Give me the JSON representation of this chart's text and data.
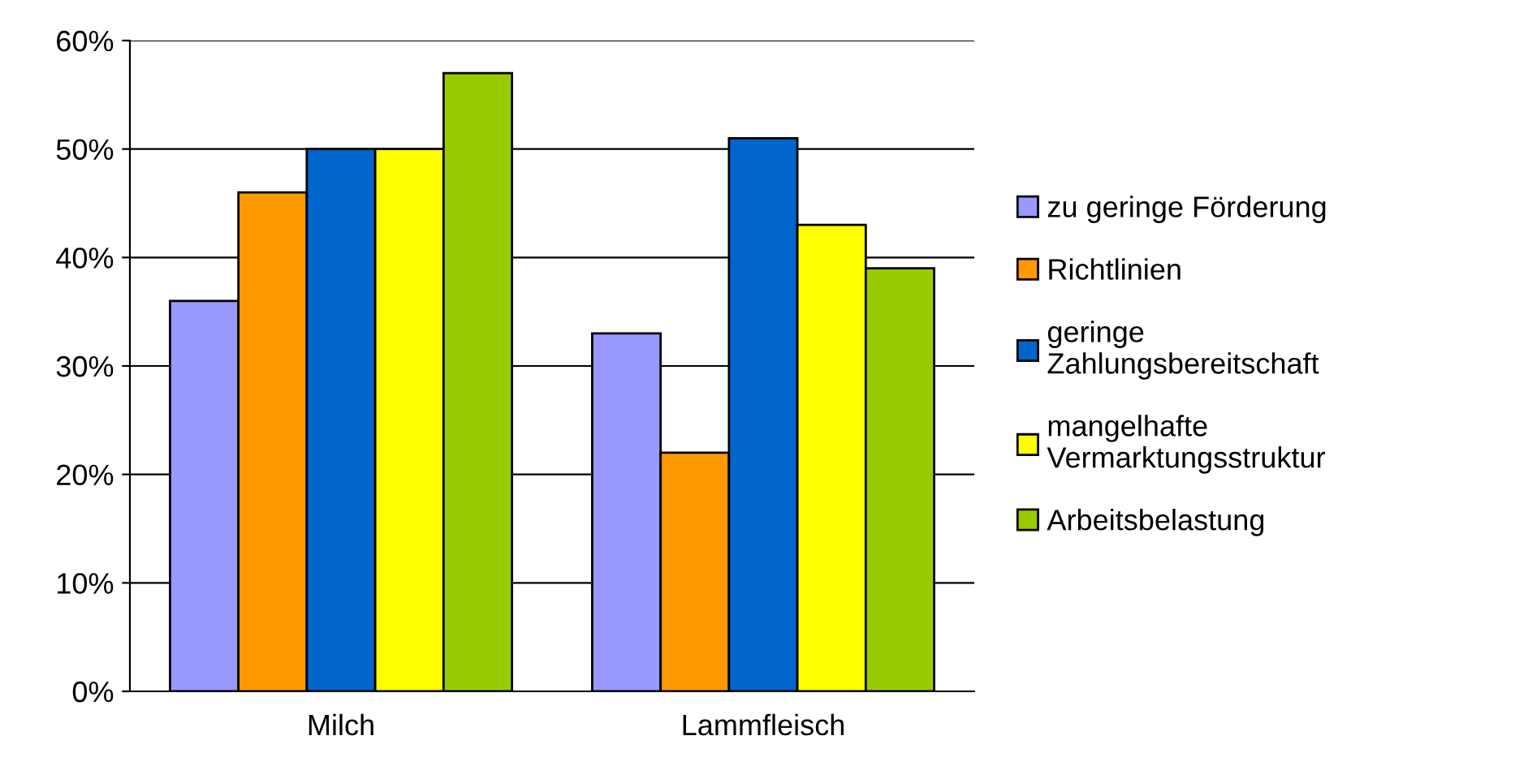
{
  "chart_data": {
    "type": "bar",
    "categories": [
      "Milch",
      "Lammfleisch"
    ],
    "series": [
      {
        "name": "zu geringe Förderung",
        "color": "#9999ff",
        "values": [
          36,
          33
        ]
      },
      {
        "name": "Richtlinien",
        "color": "#ff9900",
        "values": [
          46,
          22
        ]
      },
      {
        "name": "geringe\nZahlungsbereitschaft",
        "color": "#0066cc",
        "values": [
          50,
          51
        ]
      },
      {
        "name": "mangelhafte\nVermarktungsstruktur",
        "color": "#ffff00",
        "values": [
          50,
          43
        ]
      },
      {
        "name": "Arbeitsbelastung",
        "color": "#99cc00",
        "values": [
          57,
          39
        ]
      }
    ],
    "ylim": [
      0,
      60
    ],
    "yticks": [
      {
        "value": 0,
        "label": "0%"
      },
      {
        "value": 10,
        "label": "10%"
      },
      {
        "value": 20,
        "label": "20%"
      },
      {
        "value": 30,
        "label": "30%"
      },
      {
        "value": 40,
        "label": "40%"
      },
      {
        "value": 50,
        "label": "50%"
      },
      {
        "value": 60,
        "label": "60%"
      }
    ],
    "grid": "y",
    "legend": "right"
  }
}
